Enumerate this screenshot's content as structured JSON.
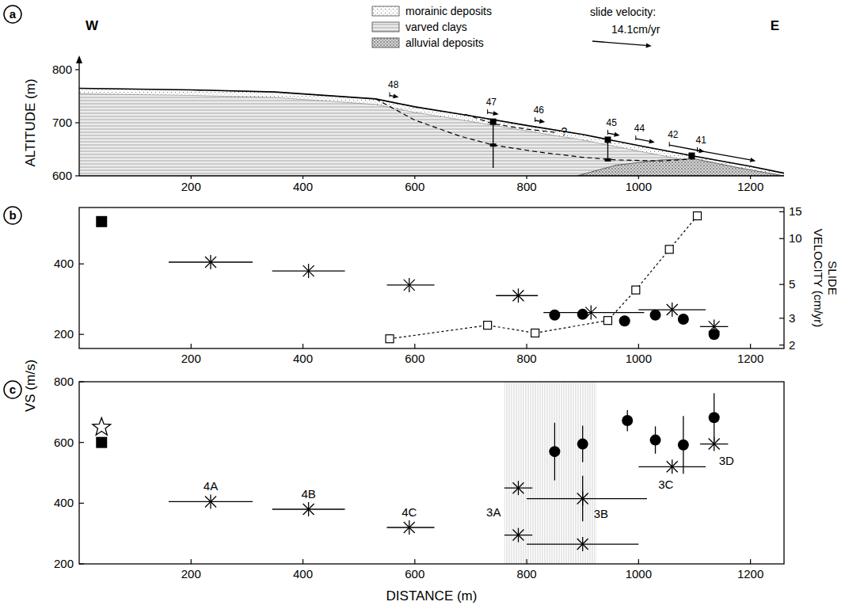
{
  "chart_data": [
    {
      "type": "cross_section",
      "panel": "a",
      "y_label": "ALTITUDE (m)",
      "west": "W",
      "east": "E",
      "xlim": [
        0,
        1260
      ],
      "xticks": [
        200,
        400,
        600,
        800,
        1000,
        1200
      ],
      "ylim": [
        600,
        800
      ],
      "yticks": [
        600,
        700,
        800
      ],
      "legend": "top",
      "layers": [
        {
          "name": "morainic deposits"
        },
        {
          "name": "varved clays"
        },
        {
          "name": "alluvial deposits",
          "x": [
            890,
            960,
            1040,
            1100,
            1180,
            1260
          ],
          "y": [
            600,
            620,
            630,
            632,
            615,
            600
          ]
        }
      ],
      "surface": {
        "x": [
          0,
          200,
          350,
          530,
          600,
          700,
          800,
          900,
          1000,
          1100,
          1200,
          1260
        ],
        "y": [
          765,
          762,
          758,
          745,
          730,
          713,
          695,
          678,
          657,
          637,
          618,
          605
        ]
      },
      "slip_surfaces": [
        {
          "x": [
            530,
            600,
            680,
            740,
            820,
            900,
            960,
            1040,
            1100
          ],
          "y": [
            745,
            705,
            675,
            658,
            645,
            635,
            630,
            628,
            632
          ],
          "line_style": "dashed"
        },
        {
          "x": [
            690,
            740,
            800,
            850
          ],
          "y": [
            716,
            698,
            688,
            682
          ],
          "line_style": "dashed",
          "label": "?"
        }
      ],
      "boreholes": [
        {
          "x": 740,
          "top": 702,
          "bottom": 615,
          "marks": [
            658
          ]
        },
        {
          "x": 945,
          "top": 668,
          "bottom": 628,
          "marks": [
            630
          ]
        },
        {
          "x": 1095,
          "top": 638,
          "bottom": 638,
          "marks": []
        }
      ],
      "stations": {
        "labels": [
          "48",
          "47",
          "46",
          "45",
          "44",
          "42",
          "41"
        ]
      },
      "velocity_key": {
        "title": "slide velocity:",
        "label": "14.1cm/yr",
        "value": 14.1
      }
    },
    {
      "type": "scatter",
      "panel": "b",
      "xlim": [
        0,
        1260
      ],
      "xticks": [
        200,
        400,
        600,
        800,
        1000,
        1200
      ],
      "ylim": [
        160,
        560
      ],
      "yticks": [
        200,
        400
      ],
      "y2lim": [
        1.9,
        16
      ],
      "y2ticks": [
        2,
        3,
        5,
        10,
        15
      ],
      "y2_label": "SLIDE VELOCITY (cm/yr)",
      "series": [
        {
          "marker": "star",
          "color": "#000000",
          "x": [
            235,
            410,
            590,
            785,
            915,
            1060,
            1135
          ],
          "x_min": [
            160,
            345,
            550,
            745,
            830,
            1000,
            1110
          ],
          "x_max": [
            310,
            475,
            635,
            820,
            1010,
            1120,
            1160
          ],
          "values": [
            405,
            380,
            340,
            310,
            262,
            270,
            222
          ]
        },
        {
          "marker": "circle",
          "color": "#000000",
          "x": [
            850,
            900,
            975,
            1030,
            1080,
            1135
          ],
          "values": [
            255,
            257,
            238,
            255,
            243,
            200
          ]
        },
        {
          "marker": "square",
          "color": "#000000",
          "x": [
            40
          ],
          "values": [
            520
          ]
        },
        {
          "marker": "open-square",
          "line_style": "dashed",
          "axis": "y2",
          "log": true,
          "color": "#000000",
          "x": [
            555,
            730,
            815,
            945,
            995,
            1055,
            1105
          ],
          "values": [
            2.2,
            2.7,
            2.4,
            2.9,
            4.6,
            8.5,
            14.1
          ]
        }
      ]
    },
    {
      "type": "scatter",
      "panel": "c",
      "x_label": "DISTANCE (m)",
      "y_label": "VS (m/s)",
      "xlim": [
        0,
        1260
      ],
      "xticks": [
        200,
        400,
        600,
        800,
        1000,
        1200
      ],
      "ylim": [
        200,
        800
      ],
      "yticks": [
        200,
        400,
        600,
        800
      ],
      "shaded_range": [
        760,
        925
      ],
      "series": [
        {
          "marker": "star",
          "color": "#000000",
          "x": [
            235,
            410,
            590,
            785,
            785,
            900,
            900,
            1060,
            1135
          ],
          "x_min": [
            160,
            345,
            550,
            760,
            760,
            800,
            800,
            1000,
            1110
          ],
          "x_max": [
            310,
            475,
            635,
            810,
            810,
            1015,
            1000,
            1120,
            1160
          ],
          "values": [
            405,
            380,
            320,
            450,
            295,
            415,
            265,
            520,
            595
          ],
          "y_error": [
            0,
            0,
            0,
            0,
            0,
            75,
            0,
            0,
            0
          ],
          "labels": [
            "4A",
            "4B",
            "4C",
            "3A",
            null,
            "3B",
            null,
            "3C",
            "3D"
          ]
        },
        {
          "marker": "circle",
          "color": "#000000",
          "x": [
            850,
            900,
            980,
            1030,
            1080,
            1135
          ],
          "values": [
            570,
            595,
            672,
            608,
            592,
            682
          ],
          "y_error": [
            95,
            60,
            35,
            45,
            95,
            80
          ]
        },
        {
          "marker": "square",
          "color": "#000000",
          "x": [
            40
          ],
          "values": [
            600
          ]
        },
        {
          "marker": "open-star",
          "color": "#000000",
          "x": [
            40
          ],
          "values": [
            650
          ]
        }
      ]
    }
  ]
}
